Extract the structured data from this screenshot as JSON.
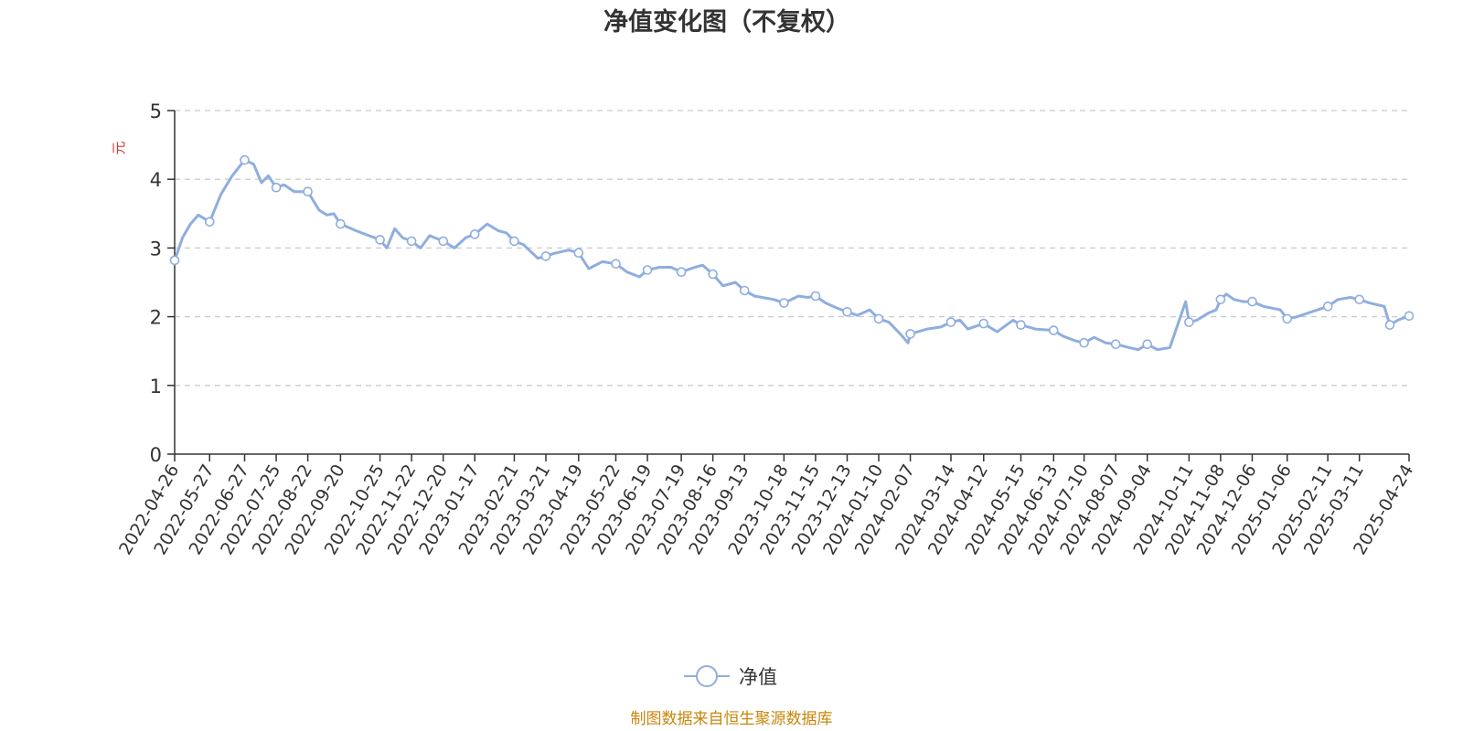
{
  "chart_data": {
    "type": "line",
    "title": "净值变化图（不复权）",
    "ylabel": "元",
    "ylim": [
      0,
      5
    ],
    "yticks": [
      "0",
      "1",
      "2",
      "3",
      "4",
      "5"
    ],
    "grid": true,
    "legend_position": "bottom-center",
    "x_range": [
      "2022-04-26",
      "2025-04-24"
    ],
    "categories": [
      "2022-04-26",
      "2022-05-27",
      "2022-06-27",
      "2022-07-25",
      "2022-08-22",
      "2022-09-20",
      "2022-10-25",
      "2022-11-22",
      "2022-12-20",
      "2023-01-17",
      "2023-02-21",
      "2023-03-21",
      "2023-04-19",
      "2023-05-22",
      "2023-06-19",
      "2023-07-19",
      "2023-08-16",
      "2023-09-13",
      "2023-10-18",
      "2023-11-15",
      "2023-12-13",
      "2024-01-10",
      "2024-02-07",
      "2024-03-14",
      "2024-04-12",
      "2024-05-15",
      "2024-06-13",
      "2024-07-10",
      "2024-08-07",
      "2024-09-04",
      "2024-10-11",
      "2024-11-08",
      "2024-12-06",
      "2025-01-06",
      "2025-02-11",
      "2025-03-11",
      "2025-04-24"
    ],
    "series": [
      {
        "name": "净值",
        "color": "#8faede",
        "points": [
          [
            "2022-04-26",
            2.82
          ],
          [
            "2022-05-03",
            3.15
          ],
          [
            "2022-05-10",
            3.35
          ],
          [
            "2022-05-17",
            3.48
          ],
          [
            "2022-05-27",
            3.38
          ],
          [
            "2022-06-06",
            3.78
          ],
          [
            "2022-06-16",
            4.05
          ],
          [
            "2022-06-27",
            4.28
          ],
          [
            "2022-07-05",
            4.22
          ],
          [
            "2022-07-12",
            3.95
          ],
          [
            "2022-07-18",
            4.05
          ],
          [
            "2022-07-25",
            3.88
          ],
          [
            "2022-08-01",
            3.92
          ],
          [
            "2022-08-10",
            3.82
          ],
          [
            "2022-08-22",
            3.82
          ],
          [
            "2022-09-01",
            3.55
          ],
          [
            "2022-09-08",
            3.48
          ],
          [
            "2022-09-14",
            3.5
          ],
          [
            "2022-09-20",
            3.35
          ],
          [
            "2022-10-04",
            3.25
          ],
          [
            "2022-10-12",
            3.2
          ],
          [
            "2022-10-25",
            3.12
          ],
          [
            "2022-10-31",
            3.0
          ],
          [
            "2022-11-07",
            3.28
          ],
          [
            "2022-11-14",
            3.15
          ],
          [
            "2022-11-22",
            3.1
          ],
          [
            "2022-11-30",
            3.0
          ],
          [
            "2022-12-08",
            3.18
          ],
          [
            "2022-12-20",
            3.1
          ],
          [
            "2022-12-30",
            3.0
          ],
          [
            "2023-01-09",
            3.15
          ],
          [
            "2023-01-17",
            3.2
          ],
          [
            "2023-01-28",
            3.35
          ],
          [
            "2023-02-07",
            3.25
          ],
          [
            "2023-02-14",
            3.22
          ],
          [
            "2023-02-21",
            3.1
          ],
          [
            "2023-03-01",
            3.05
          ],
          [
            "2023-03-14",
            2.85
          ],
          [
            "2023-03-21",
            2.88
          ],
          [
            "2023-03-28",
            2.92
          ],
          [
            "2023-04-10",
            2.97
          ],
          [
            "2023-04-19",
            2.93
          ],
          [
            "2023-04-28",
            2.7
          ],
          [
            "2023-05-10",
            2.8
          ],
          [
            "2023-05-22",
            2.77
          ],
          [
            "2023-06-01",
            2.65
          ],
          [
            "2023-06-12",
            2.58
          ],
          [
            "2023-06-19",
            2.68
          ],
          [
            "2023-06-30",
            2.72
          ],
          [
            "2023-07-10",
            2.72
          ],
          [
            "2023-07-19",
            2.65
          ],
          [
            "2023-07-31",
            2.72
          ],
          [
            "2023-08-07",
            2.75
          ],
          [
            "2023-08-16",
            2.62
          ],
          [
            "2023-08-25",
            2.45
          ],
          [
            "2023-09-05",
            2.5
          ],
          [
            "2023-09-13",
            2.38
          ],
          [
            "2023-09-22",
            2.3
          ],
          [
            "2023-10-09",
            2.25
          ],
          [
            "2023-10-18",
            2.2
          ],
          [
            "2023-10-31",
            2.3
          ],
          [
            "2023-11-08",
            2.28
          ],
          [
            "2023-11-15",
            2.3
          ],
          [
            "2023-11-24",
            2.2
          ],
          [
            "2023-12-05",
            2.12
          ],
          [
            "2023-12-13",
            2.07
          ],
          [
            "2023-12-22",
            2.02
          ],
          [
            "2024-01-02",
            2.1
          ],
          [
            "2024-01-10",
            1.97
          ],
          [
            "2024-01-19",
            1.92
          ],
          [
            "2024-01-29",
            1.75
          ],
          [
            "2024-02-05",
            1.62
          ],
          [
            "2024-02-07",
            1.75
          ],
          [
            "2024-02-22",
            1.82
          ],
          [
            "2024-03-05",
            1.85
          ],
          [
            "2024-03-14",
            1.92
          ],
          [
            "2024-03-22",
            1.95
          ],
          [
            "2024-03-29",
            1.82
          ],
          [
            "2024-04-12",
            1.9
          ],
          [
            "2024-04-24",
            1.78
          ],
          [
            "2024-05-08",
            1.95
          ],
          [
            "2024-05-15",
            1.88
          ],
          [
            "2024-05-28",
            1.82
          ],
          [
            "2024-06-13",
            1.8
          ],
          [
            "2024-06-21",
            1.72
          ],
          [
            "2024-07-02",
            1.65
          ],
          [
            "2024-07-10",
            1.62
          ],
          [
            "2024-07-19",
            1.7
          ],
          [
            "2024-07-29",
            1.62
          ],
          [
            "2024-08-07",
            1.6
          ],
          [
            "2024-08-19",
            1.55
          ],
          [
            "2024-08-27",
            1.52
          ],
          [
            "2024-09-04",
            1.6
          ],
          [
            "2024-09-13",
            1.52
          ],
          [
            "2024-09-24",
            1.55
          ],
          [
            "2024-10-08",
            2.22
          ],
          [
            "2024-10-11",
            1.92
          ],
          [
            "2024-10-18",
            1.95
          ],
          [
            "2024-10-28",
            2.05
          ],
          [
            "2024-11-04",
            2.1
          ],
          [
            "2024-11-08",
            2.25
          ],
          [
            "2024-11-13",
            2.33
          ],
          [
            "2024-11-20",
            2.25
          ],
          [
            "2024-11-28",
            2.22
          ],
          [
            "2024-12-06",
            2.22
          ],
          [
            "2024-12-16",
            2.15
          ],
          [
            "2024-12-31",
            2.1
          ],
          [
            "2025-01-06",
            1.97
          ],
          [
            "2025-01-15",
            2.0
          ],
          [
            "2025-01-24",
            2.05
          ],
          [
            "2025-02-11",
            2.15
          ],
          [
            "2025-02-20",
            2.25
          ],
          [
            "2025-03-03",
            2.28
          ],
          [
            "2025-03-11",
            2.25
          ],
          [
            "2025-03-20",
            2.2
          ],
          [
            "2025-04-02",
            2.15
          ],
          [
            "2025-04-07",
            1.88
          ],
          [
            "2025-04-14",
            1.95
          ],
          [
            "2025-04-24",
            2.01
          ]
        ],
        "markers": [
          "2022-04-26",
          "2022-05-27",
          "2022-06-27",
          "2022-07-25",
          "2022-08-22",
          "2022-09-20",
          "2022-10-25",
          "2022-11-22",
          "2022-12-20",
          "2023-01-17",
          "2023-02-21",
          "2023-03-21",
          "2023-04-19",
          "2023-05-22",
          "2023-06-19",
          "2023-07-19",
          "2023-08-16",
          "2023-09-13",
          "2023-10-18",
          "2023-11-15",
          "2023-12-13",
          "2024-01-10",
          "2024-02-07",
          "2024-03-14",
          "2024-04-12",
          "2024-05-15",
          "2024-06-13",
          "2024-07-10",
          "2024-08-07",
          "2024-09-04",
          "2024-10-11",
          "2024-11-08",
          "2024-12-06",
          "2025-01-06",
          "2025-02-11",
          "2025-03-11",
          "2025-04-07",
          "2025-04-24"
        ]
      }
    ]
  },
  "legend": {
    "label": "净值"
  },
  "source": "制图数据来自恒生聚源数据库"
}
